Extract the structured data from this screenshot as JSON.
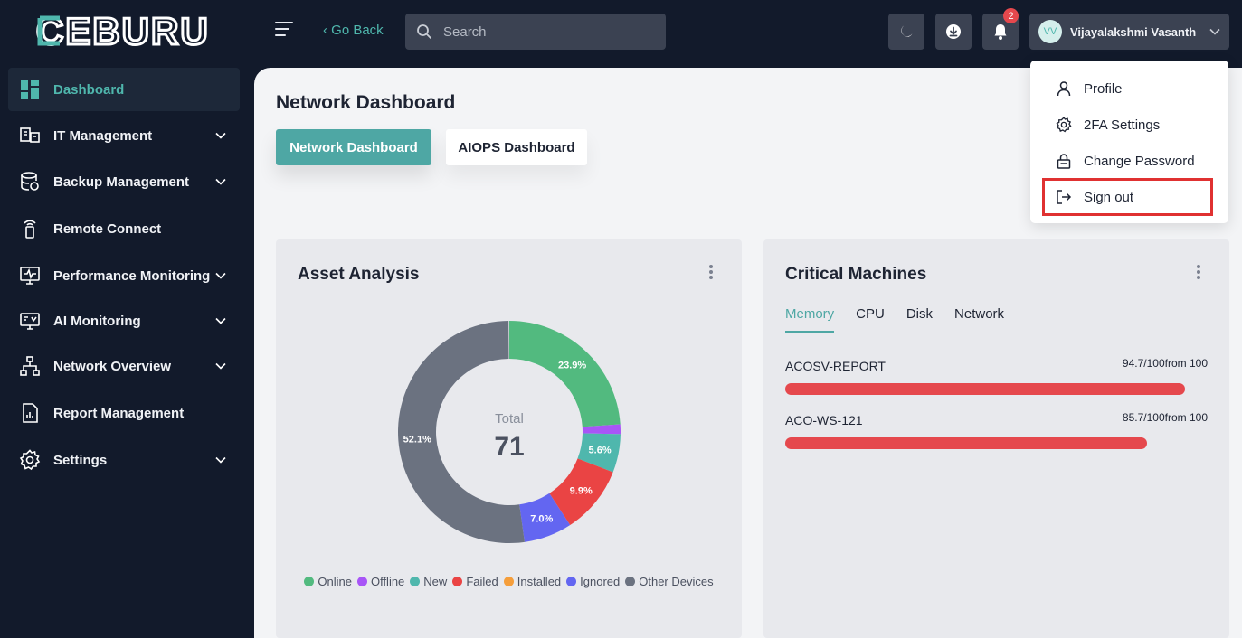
{
  "app": {
    "logo_text": "CEBURU"
  },
  "topbar": {
    "go_back_label": "‹ Go Back",
    "search_placeholder": "Search",
    "notification_count": "2",
    "user": {
      "initials": "VV",
      "name": "Vijayalakshmi Vasanth"
    }
  },
  "sidebar": {
    "items": [
      {
        "label": "Dashboard",
        "icon": "dashboard-icon",
        "active": true,
        "has_chevron": false
      },
      {
        "label": "IT Management",
        "icon": "it-management-icon",
        "active": false,
        "has_chevron": true
      },
      {
        "label": "Backup Management",
        "icon": "database-icon",
        "active": false,
        "has_chevron": true
      },
      {
        "label": "Remote Connect",
        "icon": "remote-icon",
        "active": false,
        "has_chevron": false
      },
      {
        "label": "Performance Monitoring",
        "icon": "monitor-icon",
        "active": false,
        "has_chevron": true
      },
      {
        "label": "AI Monitoring",
        "icon": "ai-monitor-icon",
        "active": false,
        "has_chevron": true
      },
      {
        "label": "Network Overview",
        "icon": "network-icon",
        "active": false,
        "has_chevron": true
      },
      {
        "label": "Report Management",
        "icon": "report-icon",
        "active": false,
        "has_chevron": false
      },
      {
        "label": "Settings",
        "icon": "gear-icon",
        "active": false,
        "has_chevron": true
      }
    ]
  },
  "main": {
    "title": "Network Dashboard",
    "tabs": [
      {
        "label": "Network Dashboard",
        "active": true
      },
      {
        "label": "AIOPS Dashboard",
        "active": false
      }
    ]
  },
  "asset_analysis": {
    "title": "Asset Analysis",
    "total_label": "Total",
    "total_value": "71"
  },
  "chart_data": {
    "type": "pie",
    "donut": true,
    "center_label": "Total",
    "center_value": 71,
    "slices": [
      {
        "name": "Online",
        "percent": 23.9,
        "label": "23.9%",
        "color": "#52ba7f"
      },
      {
        "name": "Offline",
        "percent": 1.4,
        "label": "",
        "color": "#a855f7"
      },
      {
        "name": "New",
        "percent": 5.6,
        "label": "5.6%",
        "color": "#4fb7ad"
      },
      {
        "name": "Failed",
        "percent": 9.9,
        "label": "9.9%",
        "color": "#ea4444"
      },
      {
        "name": "Installed",
        "percent": 0,
        "label": "",
        "color": "#f59e3b"
      },
      {
        "name": "Ignored",
        "percent": 7.0,
        "label": "7.0%",
        "color": "#6366f1"
      },
      {
        "name": "Other Devices",
        "percent": 52.1,
        "label": "52.1%",
        "color": "#6b7280"
      }
    ],
    "legend": [
      "Online",
      "Offline",
      "New",
      "Failed",
      "Installed",
      "Ignored",
      "Other Devices"
    ]
  },
  "critical_machines": {
    "title": "Critical Machines",
    "tabs": [
      {
        "label": "Memory",
        "active": true
      },
      {
        "label": "CPU",
        "active": false
      },
      {
        "label": "Disk",
        "active": false
      },
      {
        "label": "Network",
        "active": false
      }
    ],
    "machines": [
      {
        "name": "ACOSV-REPORT",
        "value_text": "94.7/100",
        "suffix": "from 100",
        "value": 94.7
      },
      {
        "name": "ACO-WS-121",
        "value_text": "85.7/100",
        "suffix": "from 100",
        "value": 85.7
      }
    ]
  },
  "user_menu": {
    "items": [
      {
        "label": "Profile",
        "icon": "user-icon"
      },
      {
        "label": "2FA Settings",
        "icon": "gear-icon"
      },
      {
        "label": "Change Password",
        "icon": "lock-icon"
      },
      {
        "label": "Sign out",
        "icon": "sign-out-icon",
        "highlighted": true
      }
    ]
  }
}
